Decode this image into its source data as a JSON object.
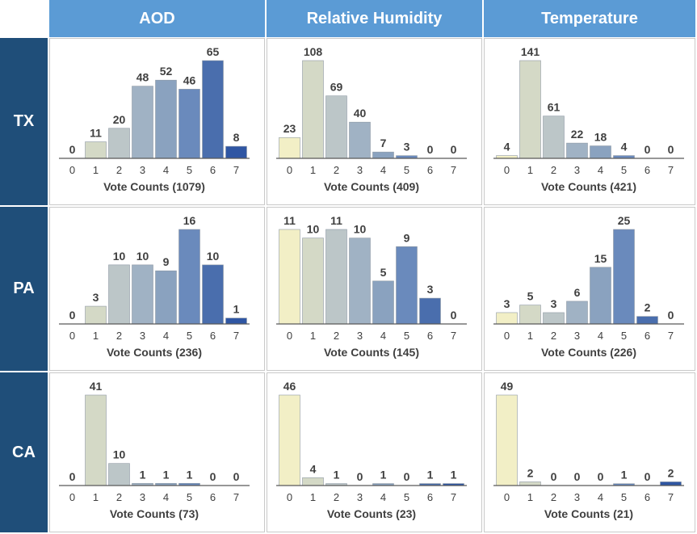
{
  "columns": [
    "AOD",
    "Relative Humidity",
    "Temperature"
  ],
  "rows": [
    "TX",
    "PA",
    "CA"
  ],
  "colors": {
    "header_col": "#5b9bd5",
    "header_row": "#1f4e79",
    "bar_scale": [
      "#f2efc6",
      "#d4d9c6",
      "#bcc6c8",
      "#a0b2c4",
      "#8aa2bf",
      "#6a8abc",
      "#4a6ead",
      "#2f56a3"
    ],
    "cell_border": "#c9c9c9",
    "text": "#404040"
  },
  "chart_data": [
    {
      "type": "bar",
      "row": "TX",
      "column": "AOD",
      "categories": [
        "0",
        "1",
        "2",
        "3",
        "4",
        "5",
        "6",
        "7"
      ],
      "values": [
        0,
        11,
        20,
        48,
        52,
        46,
        65,
        8
      ],
      "xlabel": "Vote Counts (1079)",
      "ylim": [
        0,
        65
      ]
    },
    {
      "type": "bar",
      "row": "TX",
      "column": "Relative Humidity",
      "categories": [
        "0",
        "1",
        "2",
        "3",
        "4",
        "5",
        "6",
        "7"
      ],
      "values": [
        23,
        108,
        69,
        40,
        7,
        3,
        0,
        0
      ],
      "xlabel": "Vote Counts (409)",
      "ylim": [
        0,
        108
      ]
    },
    {
      "type": "bar",
      "row": "TX",
      "column": "Temperature",
      "categories": [
        "0",
        "1",
        "2",
        "3",
        "4",
        "5",
        "6",
        "7"
      ],
      "values": [
        4,
        141,
        61,
        22,
        18,
        4,
        0,
        0
      ],
      "xlabel": "Vote Counts (421)",
      "ylim": [
        0,
        141
      ]
    },
    {
      "type": "bar",
      "row": "PA",
      "column": "AOD",
      "categories": [
        "0",
        "1",
        "2",
        "3",
        "4",
        "5",
        "6",
        "7"
      ],
      "values": [
        0,
        3,
        10,
        10,
        9,
        16,
        10,
        1
      ],
      "xlabel": "Vote Counts (236)",
      "ylim": [
        0,
        16
      ]
    },
    {
      "type": "bar",
      "row": "PA",
      "column": "Relative Humidity",
      "categories": [
        "0",
        "1",
        "2",
        "3",
        "4",
        "5",
        "6",
        "7"
      ],
      "values": [
        11,
        10,
        11,
        10,
        5,
        9,
        3,
        0
      ],
      "xlabel": "Vote Counts (145)",
      "ylim": [
        0,
        11
      ]
    },
    {
      "type": "bar",
      "row": "PA",
      "column": "Temperature",
      "categories": [
        "0",
        "1",
        "2",
        "3",
        "4",
        "5",
        "6",
        "7"
      ],
      "values": [
        3,
        5,
        3,
        6,
        15,
        25,
        2,
        0
      ],
      "xlabel": "Vote Counts (226)",
      "ylim": [
        0,
        25
      ]
    },
    {
      "type": "bar",
      "row": "CA",
      "column": "AOD",
      "categories": [
        "0",
        "1",
        "2",
        "3",
        "4",
        "5",
        "6",
        "7"
      ],
      "values": [
        0,
        41,
        10,
        1,
        1,
        1,
        0,
        0
      ],
      "xlabel": "Vote Counts (73)",
      "ylim": [
        0,
        41
      ]
    },
    {
      "type": "bar",
      "row": "CA",
      "column": "Relative Humidity",
      "categories": [
        "0",
        "1",
        "2",
        "3",
        "4",
        "5",
        "6",
        "7"
      ],
      "values": [
        46,
        4,
        1,
        0,
        1,
        0,
        1,
        1
      ],
      "xlabel": "Vote Counts (23)",
      "ylim": [
        0,
        46
      ]
    },
    {
      "type": "bar",
      "row": "CA",
      "column": "Temperature",
      "categories": [
        "0",
        "1",
        "2",
        "3",
        "4",
        "5",
        "6",
        "7"
      ],
      "values": [
        49,
        2,
        0,
        0,
        0,
        1,
        0,
        2
      ],
      "xlabel": "Vote Counts (21)",
      "ylim": [
        0,
        49
      ]
    }
  ]
}
